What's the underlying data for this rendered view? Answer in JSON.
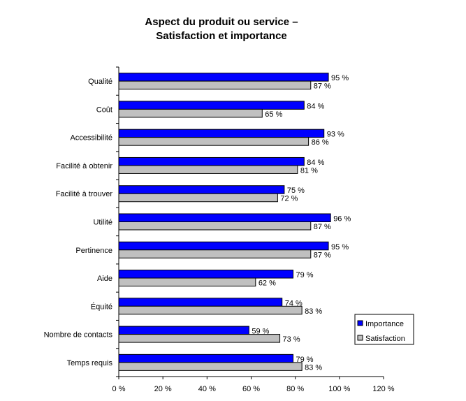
{
  "chart_data": {
    "type": "bar",
    "orientation": "horizontal",
    "title": [
      "Aspect du produit ou service –",
      "Satisfaction et importance"
    ],
    "categories": [
      "Qualité",
      "Coût",
      "Accessibilité",
      "Facilité à obtenir",
      "Facilité à trouver",
      "Utilité",
      "Pertinence",
      "Aide",
      "Équité",
      "Nombre de contacts",
      "Temps requis"
    ],
    "series": [
      {
        "name": "Importance",
        "color": "#0000FF",
        "values": [
          95,
          84,
          93,
          84,
          75,
          96,
          95,
          79,
          74,
          59,
          79
        ]
      },
      {
        "name": "Satisfaction",
        "color": "#C0C0C0",
        "values": [
          87,
          65,
          86,
          81,
          72,
          87,
          87,
          62,
          83,
          73,
          83
        ]
      }
    ],
    "value_labels_suffix": " %",
    "xlim": [
      0,
      120
    ],
    "xticks": [
      "0 %",
      "20 %",
      "40 %",
      "60 %",
      "80 %",
      "100 %",
      "120 %"
    ],
    "grid": false,
    "legend": "right"
  }
}
